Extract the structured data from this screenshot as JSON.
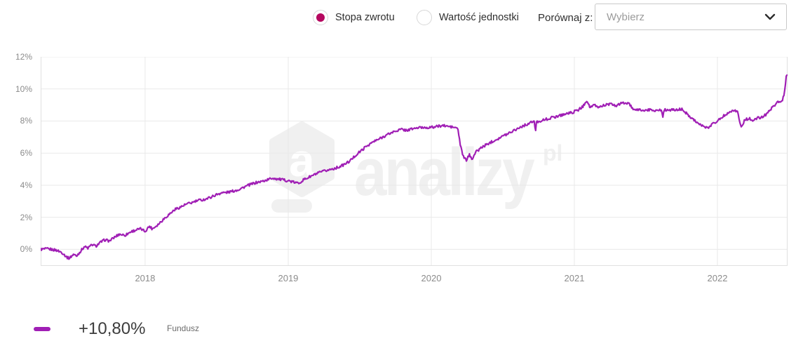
{
  "header_controls": {
    "radio_return": {
      "label": "Stopa zwrotu",
      "selected": true
    },
    "radio_unit": {
      "label": "Wartość jednostki",
      "selected": false
    },
    "compare_label": "Porównaj z:",
    "compare_select": {
      "placeholder": "Wybierz"
    }
  },
  "watermark": {
    "logo_letter": "a",
    "brand": "analizy",
    "tld": "pl"
  },
  "legend": {
    "value": "+10,80%",
    "series": "Fundusz"
  },
  "colors": {
    "line": "#a01fb5",
    "radio_dot": "#b5085f",
    "grid": "#e9e9e9",
    "axis_text": "#8b8b8b",
    "watermark": "#f0f0f0"
  },
  "chart_data": {
    "type": "line",
    "title": "",
    "xlabel": "",
    "ylabel": "",
    "grid": true,
    "legend_position": "bottom-left",
    "x_axis": {
      "tick_values": [
        2018,
        2019,
        2020,
        2021,
        2022
      ],
      "tick_labels": [
        "2018",
        "2019",
        "2020",
        "2021",
        "2022"
      ],
      "range": [
        2017.27,
        2022.49
      ]
    },
    "y_axis": {
      "tick_values": [
        0,
        2,
        4,
        6,
        8,
        10,
        12
      ],
      "tick_labels": [
        "0%",
        "2%",
        "4%",
        "6%",
        "8%",
        "10%",
        "12%"
      ],
      "range": [
        -1.03,
        12
      ],
      "unit": "%"
    },
    "noise_amplitude": 0.08,
    "series": [
      {
        "name": "Fundusz",
        "final_value_label": "+10,80%",
        "color": "#a01fb5",
        "points": [
          [
            2017.27,
            0.0
          ],
          [
            2017.32,
            0.03
          ],
          [
            2017.38,
            -0.05
          ],
          [
            2017.42,
            -0.2
          ],
          [
            2017.455,
            -0.5
          ],
          [
            2017.47,
            -0.55
          ],
          [
            2017.5,
            -0.3
          ],
          [
            2017.52,
            -0.42
          ],
          [
            2017.55,
            -0.1
          ],
          [
            2017.575,
            0.18
          ],
          [
            2017.6,
            0.08
          ],
          [
            2017.63,
            0.3
          ],
          [
            2017.655,
            0.2
          ],
          [
            2017.69,
            0.45
          ],
          [
            2017.72,
            0.6
          ],
          [
            2017.75,
            0.52
          ],
          [
            2017.79,
            0.78
          ],
          [
            2017.82,
            0.95
          ],
          [
            2017.86,
            0.88
          ],
          [
            2017.9,
            1.1
          ],
          [
            2017.94,
            1.22
          ],
          [
            2017.97,
            1.28
          ],
          [
            2018.0,
            1.12
          ],
          [
            2018.03,
            1.45
          ],
          [
            2018.05,
            1.28
          ],
          [
            2018.09,
            1.55
          ],
          [
            2018.13,
            1.9
          ],
          [
            2018.17,
            2.2
          ],
          [
            2018.21,
            2.5
          ],
          [
            2018.25,
            2.65
          ],
          [
            2018.29,
            2.82
          ],
          [
            2018.33,
            2.92
          ],
          [
            2018.37,
            3.05
          ],
          [
            2018.41,
            3.1
          ],
          [
            2018.45,
            3.22
          ],
          [
            2018.49,
            3.38
          ],
          [
            2018.53,
            3.52
          ],
          [
            2018.57,
            3.55
          ],
          [
            2018.61,
            3.62
          ],
          [
            2018.65,
            3.72
          ],
          [
            2018.69,
            3.88
          ],
          [
            2018.73,
            4.02
          ],
          [
            2018.77,
            4.15
          ],
          [
            2018.81,
            4.22
          ],
          [
            2018.85,
            4.32
          ],
          [
            2018.89,
            4.45
          ],
          [
            2018.93,
            4.38
          ],
          [
            2018.97,
            4.32
          ],
          [
            2019.0,
            4.28
          ],
          [
            2019.04,
            4.18
          ],
          [
            2019.07,
            4.12
          ],
          [
            2019.11,
            4.35
          ],
          [
            2019.15,
            4.52
          ],
          [
            2019.19,
            4.68
          ],
          [
            2019.23,
            4.82
          ],
          [
            2019.27,
            4.92
          ],
          [
            2019.31,
            5.02
          ],
          [
            2019.35,
            5.12
          ],
          [
            2019.39,
            5.28
          ],
          [
            2019.43,
            5.5
          ],
          [
            2019.47,
            5.85
          ],
          [
            2019.51,
            6.15
          ],
          [
            2019.55,
            6.45
          ],
          [
            2019.59,
            6.68
          ],
          [
            2019.63,
            6.85
          ],
          [
            2019.67,
            7.05
          ],
          [
            2019.71,
            7.22
          ],
          [
            2019.75,
            7.38
          ],
          [
            2019.79,
            7.48
          ],
          [
            2019.83,
            7.42
          ],
          [
            2019.87,
            7.52
          ],
          [
            2019.91,
            7.58
          ],
          [
            2019.95,
            7.6
          ],
          [
            2020.0,
            7.6
          ],
          [
            2020.04,
            7.66
          ],
          [
            2020.08,
            7.72
          ],
          [
            2020.12,
            7.66
          ],
          [
            2020.16,
            7.6
          ],
          [
            2020.185,
            7.55
          ],
          [
            2020.205,
            6.4
          ],
          [
            2020.225,
            5.75
          ],
          [
            2020.245,
            5.55
          ],
          [
            2020.265,
            5.9
          ],
          [
            2020.285,
            5.65
          ],
          [
            2020.31,
            6.05
          ],
          [
            2020.35,
            6.35
          ],
          [
            2020.39,
            6.55
          ],
          [
            2020.43,
            6.75
          ],
          [
            2020.47,
            6.92
          ],
          [
            2020.51,
            7.1
          ],
          [
            2020.55,
            7.3
          ],
          [
            2020.59,
            7.48
          ],
          [
            2020.63,
            7.65
          ],
          [
            2020.67,
            7.8
          ],
          [
            2020.7,
            7.92
          ],
          [
            2020.72,
            7.98
          ],
          [
            2020.728,
            7.3
          ],
          [
            2020.736,
            7.95
          ],
          [
            2020.78,
            8.05
          ],
          [
            2020.82,
            8.15
          ],
          [
            2020.86,
            8.25
          ],
          [
            2020.9,
            8.35
          ],
          [
            2020.94,
            8.45
          ],
          [
            2020.98,
            8.52
          ],
          [
            2021.02,
            8.65
          ],
          [
            2021.06,
            8.9
          ],
          [
            2021.085,
            9.3
          ],
          [
            2021.11,
            8.85
          ],
          [
            2021.14,
            8.98
          ],
          [
            2021.17,
            8.85
          ],
          [
            2021.21,
            9.0
          ],
          [
            2021.25,
            9.05
          ],
          [
            2021.29,
            8.95
          ],
          [
            2021.33,
            9.1
          ],
          [
            2021.36,
            9.15
          ],
          [
            2021.39,
            9.0
          ],
          [
            2021.415,
            8.65
          ],
          [
            2021.45,
            8.72
          ],
          [
            2021.49,
            8.65
          ],
          [
            2021.53,
            8.7
          ],
          [
            2021.57,
            8.66
          ],
          [
            2021.61,
            8.68
          ],
          [
            2021.618,
            8.3
          ],
          [
            2021.626,
            8.68
          ],
          [
            2021.67,
            8.7
          ],
          [
            2021.71,
            8.68
          ],
          [
            2021.75,
            8.75
          ],
          [
            2021.78,
            8.5
          ],
          [
            2021.82,
            8.2
          ],
          [
            2021.86,
            7.9
          ],
          [
            2021.9,
            7.65
          ],
          [
            2021.93,
            7.55
          ],
          [
            2021.96,
            7.8
          ],
          [
            2022.0,
            8.0
          ],
          [
            2022.04,
            8.3
          ],
          [
            2022.08,
            8.55
          ],
          [
            2022.11,
            8.7
          ],
          [
            2022.14,
            8.58
          ],
          [
            2022.165,
            7.6
          ],
          [
            2022.19,
            8.05
          ],
          [
            2022.22,
            8.18
          ],
          [
            2022.25,
            7.98
          ],
          [
            2022.28,
            8.2
          ],
          [
            2022.31,
            8.22
          ],
          [
            2022.34,
            8.42
          ],
          [
            2022.37,
            8.7
          ],
          [
            2022.4,
            9.0
          ],
          [
            2022.42,
            9.28
          ],
          [
            2022.44,
            9.1
          ],
          [
            2022.455,
            9.35
          ],
          [
            2022.465,
            9.65
          ],
          [
            2022.475,
            10.3
          ],
          [
            2022.482,
            10.95
          ],
          [
            2022.486,
            10.8
          ]
        ]
      }
    ]
  }
}
